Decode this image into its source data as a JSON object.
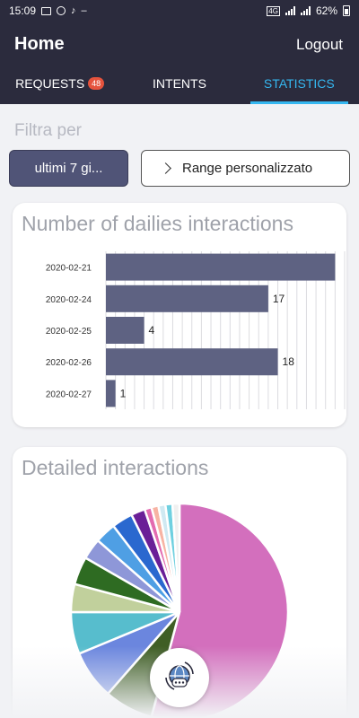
{
  "status_bar": {
    "time": "15:09",
    "signal_label": "4G",
    "battery": "62%"
  },
  "header": {
    "title": "Home",
    "logout_label": "Logout"
  },
  "tabs": [
    {
      "label": "REQUESTS",
      "badge": "48",
      "active": false
    },
    {
      "label": "INTENTS",
      "active": false
    },
    {
      "label": "STATISTICS",
      "active": true
    }
  ],
  "filter": {
    "label": "Filtra per",
    "period_button": "ultimi 7 gi...",
    "range_button": "Range personalizzato"
  },
  "daily_card": {
    "title": "Number of dailies interactions"
  },
  "detailed_card": {
    "title": "Detailed interactions"
  },
  "colors": {
    "header_bg": "#2b2b3d",
    "accent": "#35b7f0",
    "bar": "#5e6282",
    "badge": "#e5533d"
  },
  "chart_data": [
    {
      "type": "bar",
      "orientation": "horizontal",
      "title": "Number of dailies interactions",
      "categories": [
        "2020-02-21",
        "2020-02-24",
        "2020-02-25",
        "2020-02-26",
        "2020-02-27"
      ],
      "values": [
        24,
        17,
        4,
        18,
        1
      ],
      "data_labels": [
        "",
        "17",
        "4",
        "18",
        "1"
      ],
      "xlim": [
        0,
        25
      ],
      "grid": true
    },
    {
      "type": "pie",
      "title": "Detailed interactions",
      "values": [
        52,
        7,
        7,
        6,
        4,
        4,
        3,
        3,
        3,
        2,
        1,
        1,
        1,
        1,
        1
      ],
      "colors": [
        "#d36fbd",
        "#3f5e25",
        "#6b86de",
        "#57bdcd",
        "#c1d09c",
        "#2e6b22",
        "#8e97d8",
        "#4f9fe4",
        "#2a68cf",
        "#6a1f97",
        "#e36bb0",
        "#f7b3a3",
        "#cfe9f2",
        "#6fd0e0",
        "#f0f0f0"
      ]
    }
  ]
}
